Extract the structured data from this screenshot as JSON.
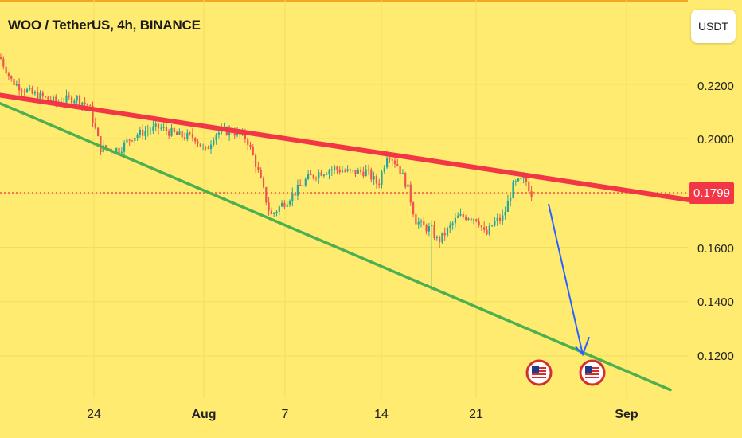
{
  "header": {
    "title": "WOO / TetherUS, 4h, BINANCE",
    "unit": "USDT"
  },
  "current_price": "0.1799",
  "colors": {
    "background": "#ffeb70",
    "up": "#26a69a",
    "down": "#ef5350",
    "resistance": "#f23645",
    "support": "#4caf50",
    "arrow": "#2962ff"
  },
  "chart_data": {
    "type": "candlestick",
    "title": "WOO / TetherUS, 4h, BINANCE",
    "x_ticks": [
      "24",
      "Aug",
      "7",
      "14",
      "21",
      "Sep"
    ],
    "y_ticks": [
      "0.2200",
      "0.2000",
      "0.1800",
      "0.1600",
      "0.1400",
      "0.1200"
    ],
    "ylim": [
      0.1065,
      0.239
    ],
    "grid": true,
    "notable_prices": {
      "start": 0.23,
      "low_wick": 0.144,
      "last": 0.1799
    },
    "trendlines": [
      {
        "role": "resistance",
        "color": "#f23645",
        "from": 0.216,
        "to": 0.1775
      },
      {
        "role": "support",
        "color": "#4caf50",
        "from": 0.213,
        "to": 0.1075
      }
    ],
    "projection_arrow": {
      "from": 0.176,
      "to": 0.1205
    },
    "event_markers": 2
  }
}
